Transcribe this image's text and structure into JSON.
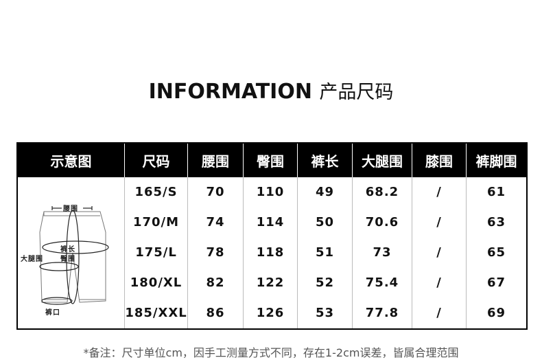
{
  "title": {
    "en": "INFORMATION",
    "cn": "产品尺码"
  },
  "table": {
    "headers": [
      "示意图",
      "尺码",
      "腰围",
      "臀围",
      "裤长",
      "大腿围",
      "膝围",
      "裤脚围"
    ],
    "rows": [
      [
        "165/S",
        "70",
        "110",
        "49",
        "68.2",
        "/",
        "61"
      ],
      [
        "170/M",
        "74",
        "114",
        "50",
        "70.6",
        "/",
        "63"
      ],
      [
        "175/L",
        "78",
        "118",
        "51",
        "73",
        "/",
        "65"
      ],
      [
        "180/XL",
        "82",
        "122",
        "52",
        "75.4",
        "/",
        "67"
      ],
      [
        "185/XXL",
        "86",
        "126",
        "53",
        "77.8",
        "/",
        "69"
      ]
    ]
  },
  "diagram": {
    "waist": "腰围",
    "length": "裤长",
    "hip": "臀围",
    "thigh": "大腿围",
    "hem": "裤口"
  },
  "note": "*备注：尺寸单位cm，因手工测量方式不同，存在1-2cm误差，皆属合理范围"
}
